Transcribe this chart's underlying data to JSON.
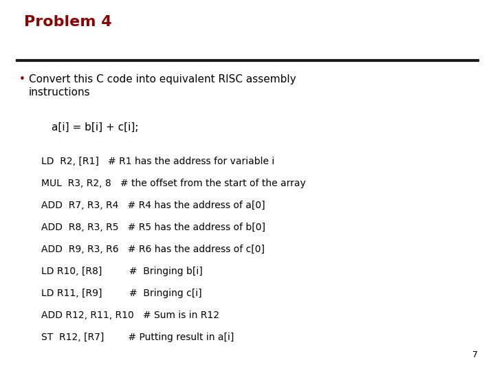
{
  "title": "Problem 4",
  "title_color": "#8B0000",
  "bg_color": "#FFFFFF",
  "bullet_line1": "Convert this C code into equivalent RISC assembly",
  "bullet_line2": "instructions",
  "code_line": "a[i] = b[i] + c[i];",
  "asm_lines": [
    "LD  R2, [R1]   # R1 has the address for variable i",
    "MUL  R3, R2, 8   # the offset from the start of the array",
    "ADD  R7, R3, R4   # R4 has the address of a[0]",
    "ADD  R8, R3, R5   # R5 has the address of b[0]",
    "ADD  R9, R3, R6   # R6 has the address of c[0]",
    "LD R10, [R8]         #  Bringing b[i]",
    "LD R11, [R9]         #  Bringing c[i]",
    "ADD R12, R11, R10   # Sum is in R12",
    "ST  R12, [R7]        # Putting result in a[i]"
  ],
  "page_number": "7",
  "text_color": "#000000",
  "line_color": "#1a1a1a",
  "font_size_title": 16,
  "font_size_body": 11,
  "font_size_code": 10,
  "font_size_page": 9
}
